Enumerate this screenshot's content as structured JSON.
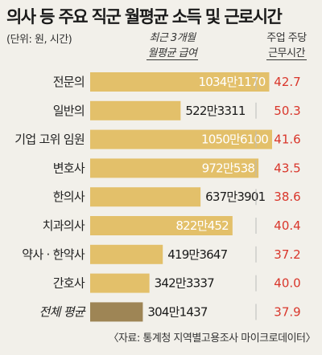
{
  "header": {
    "title": "의사 등 주요 직군 월평균 소득 및 근로시간",
    "unit": "(단위: 원, 시간)",
    "salary_label_1": "최근 3개월",
    "salary_label_2": "월평균 급여",
    "hours_label_1": "주업 주당",
    "hours_label_2": "근무시간"
  },
  "source": "〈자료: 통계청 지역별고용조사 마이크로데이터〉",
  "colors": {
    "bar": "#e3c06a",
    "bar_avg": "#9e8555",
    "hours_text": "#d9362b",
    "background": "#f2f0ea"
  },
  "chart_data": {
    "type": "bar",
    "orientation": "horizontal",
    "categories": [
      "전문의",
      "일반의",
      "기업 고위 임원",
      "변호사",
      "한의사",
      "치과의사",
      "약사 · 한약사",
      "간호사",
      "전체 평균"
    ],
    "series": [
      {
        "name": "최근 3개월 월평균 급여",
        "values": [
          10341170,
          5223311,
          10506100,
          9720538,
          6373901,
          8220452,
          4193647,
          3423337,
          3041437
        ]
      },
      {
        "name": "주업 주당 근무시간",
        "values": [
          42.7,
          50.3,
          41.6,
          43.5,
          38.6,
          40.4,
          37.2,
          40.0,
          37.9
        ]
      }
    ],
    "salary_labels": [
      "1034만1170",
      "522만3311",
      "1050만6100",
      "972만538",
      "637만3901",
      "822만452",
      "419만3647",
      "342만3337",
      "304만1437"
    ],
    "hours_labels": [
      "42.7",
      "50.3",
      "41.6",
      "43.5",
      "38.6",
      "40.4",
      "37.2",
      "40.0",
      "37.9"
    ]
  }
}
